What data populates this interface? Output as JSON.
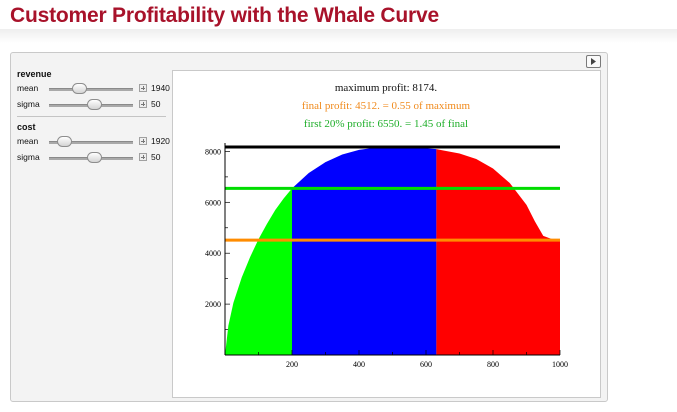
{
  "page": {
    "title": "Customer Profitability with the Whale Curve"
  },
  "controls": {
    "revenue": {
      "label": "revenue",
      "mean": {
        "label": "mean",
        "value": "1940",
        "fraction": 0.33
      },
      "sigma": {
        "label": "sigma",
        "value": "50",
        "fraction": 0.55
      }
    },
    "cost": {
      "label": "cost",
      "mean": {
        "label": "mean",
        "value": "1920",
        "fraction": 0.12
      },
      "sigma": {
        "label": "sigma",
        "value": "50",
        "fraction": 0.55
      }
    }
  },
  "chart": {
    "annotations": {
      "max": "maximum profit: 8174.",
      "final": "final profit: 4512. = 0.55 of maximum",
      "first20": "first 20% profit: 6550. = 1.45 of final"
    },
    "colors": {
      "max_text": "#111111",
      "final_text": "#f08a1c",
      "first20_text": "#1fae2a"
    }
  },
  "chart_data": {
    "type": "area",
    "x": [
      0,
      10,
      25,
      50,
      75,
      100,
      125,
      150,
      175,
      200,
      250,
      300,
      350,
      400,
      450,
      500,
      550,
      600,
      631,
      650,
      700,
      750,
      800,
      850,
      900,
      925,
      950,
      975,
      990,
      1000
    ],
    "y": [
      0,
      1150,
      2050,
      3050,
      3850,
      4550,
      5150,
      5700,
      6150,
      6550,
      7150,
      7580,
      7880,
      8060,
      8150,
      8174,
      8160,
      8120,
      8090,
      8040,
      7920,
      7700,
      7330,
      6760,
      5900,
      5250,
      4680,
      4560,
      4530,
      4512
    ],
    "regions": [
      {
        "range": [
          0,
          200
        ],
        "color": "#00ff00"
      },
      {
        "range": [
          200,
          631
        ],
        "color": "#0000ff"
      },
      {
        "range": [
          631,
          1000
        ],
        "color": "#ff0000"
      }
    ],
    "reference_lines": [
      {
        "y": 8174,
        "color": "#000000"
      },
      {
        "y": 6550,
        "color": "#00dd00"
      },
      {
        "y": 4512,
        "color": "#ff8c00"
      }
    ],
    "xlim": [
      0,
      1000
    ],
    "ylim": [
      0,
      8174
    ],
    "x_ticks": [
      200,
      400,
      600,
      800,
      1000
    ],
    "y_ticks": [
      2000,
      4000,
      6000,
      8000
    ]
  }
}
